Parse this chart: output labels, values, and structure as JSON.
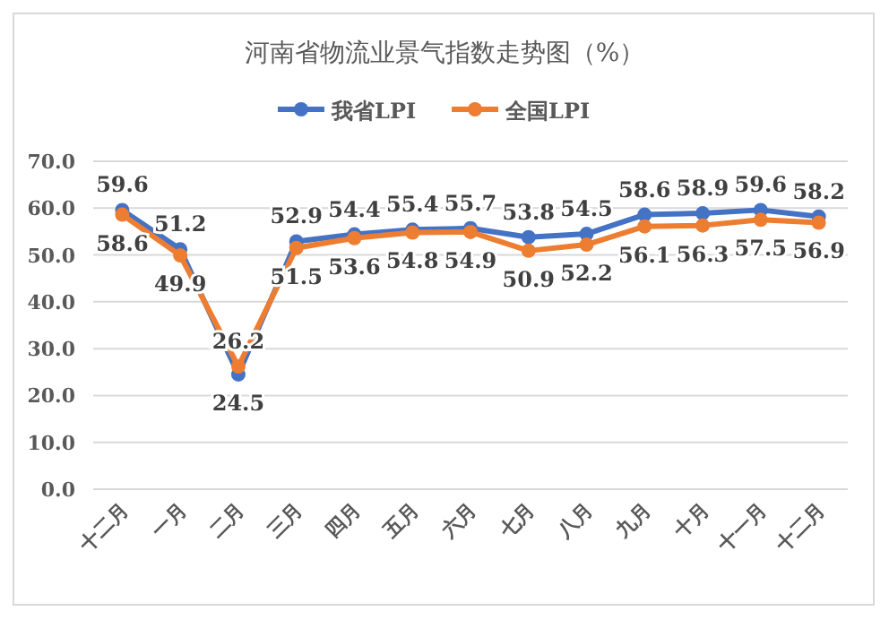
{
  "chart_data": {
    "type": "line",
    "title": "河南省物流业景气指数走势图（%）",
    "categories": [
      "十二月",
      "一月",
      "二月",
      "三月",
      "四月",
      "五月",
      "六月",
      "七月",
      "八月",
      "九月",
      "十月",
      "十一月",
      "十二月"
    ],
    "series": [
      {
        "name": "我省LPI",
        "color": "#4472c4",
        "values": [
          59.6,
          51.2,
          24.5,
          52.9,
          54.4,
          55.4,
          55.7,
          53.8,
          54.5,
          58.6,
          58.9,
          59.6,
          58.2
        ]
      },
      {
        "name": "全国LPI",
        "color": "#ed7d31",
        "values": [
          58.6,
          49.9,
          26.2,
          51.5,
          53.6,
          54.8,
          54.9,
          50.9,
          52.2,
          56.1,
          56.3,
          57.5,
          56.9
        ]
      }
    ],
    "ylim": [
      0,
      70
    ],
    "yticks": [
      {
        "value": 0,
        "label": "0.0"
      },
      {
        "value": 10,
        "label": "10.0"
      },
      {
        "value": 20,
        "label": "20.0"
      },
      {
        "value": 30,
        "label": "30.0"
      },
      {
        "value": 40,
        "label": "40.0"
      },
      {
        "value": 50,
        "label": "50.0"
      },
      {
        "value": 60,
        "label": "60.0"
      },
      {
        "value": 70,
        "label": "70.0"
      }
    ],
    "grid": "y",
    "legend": "top",
    "marker": "circle",
    "data_labels": true
  }
}
